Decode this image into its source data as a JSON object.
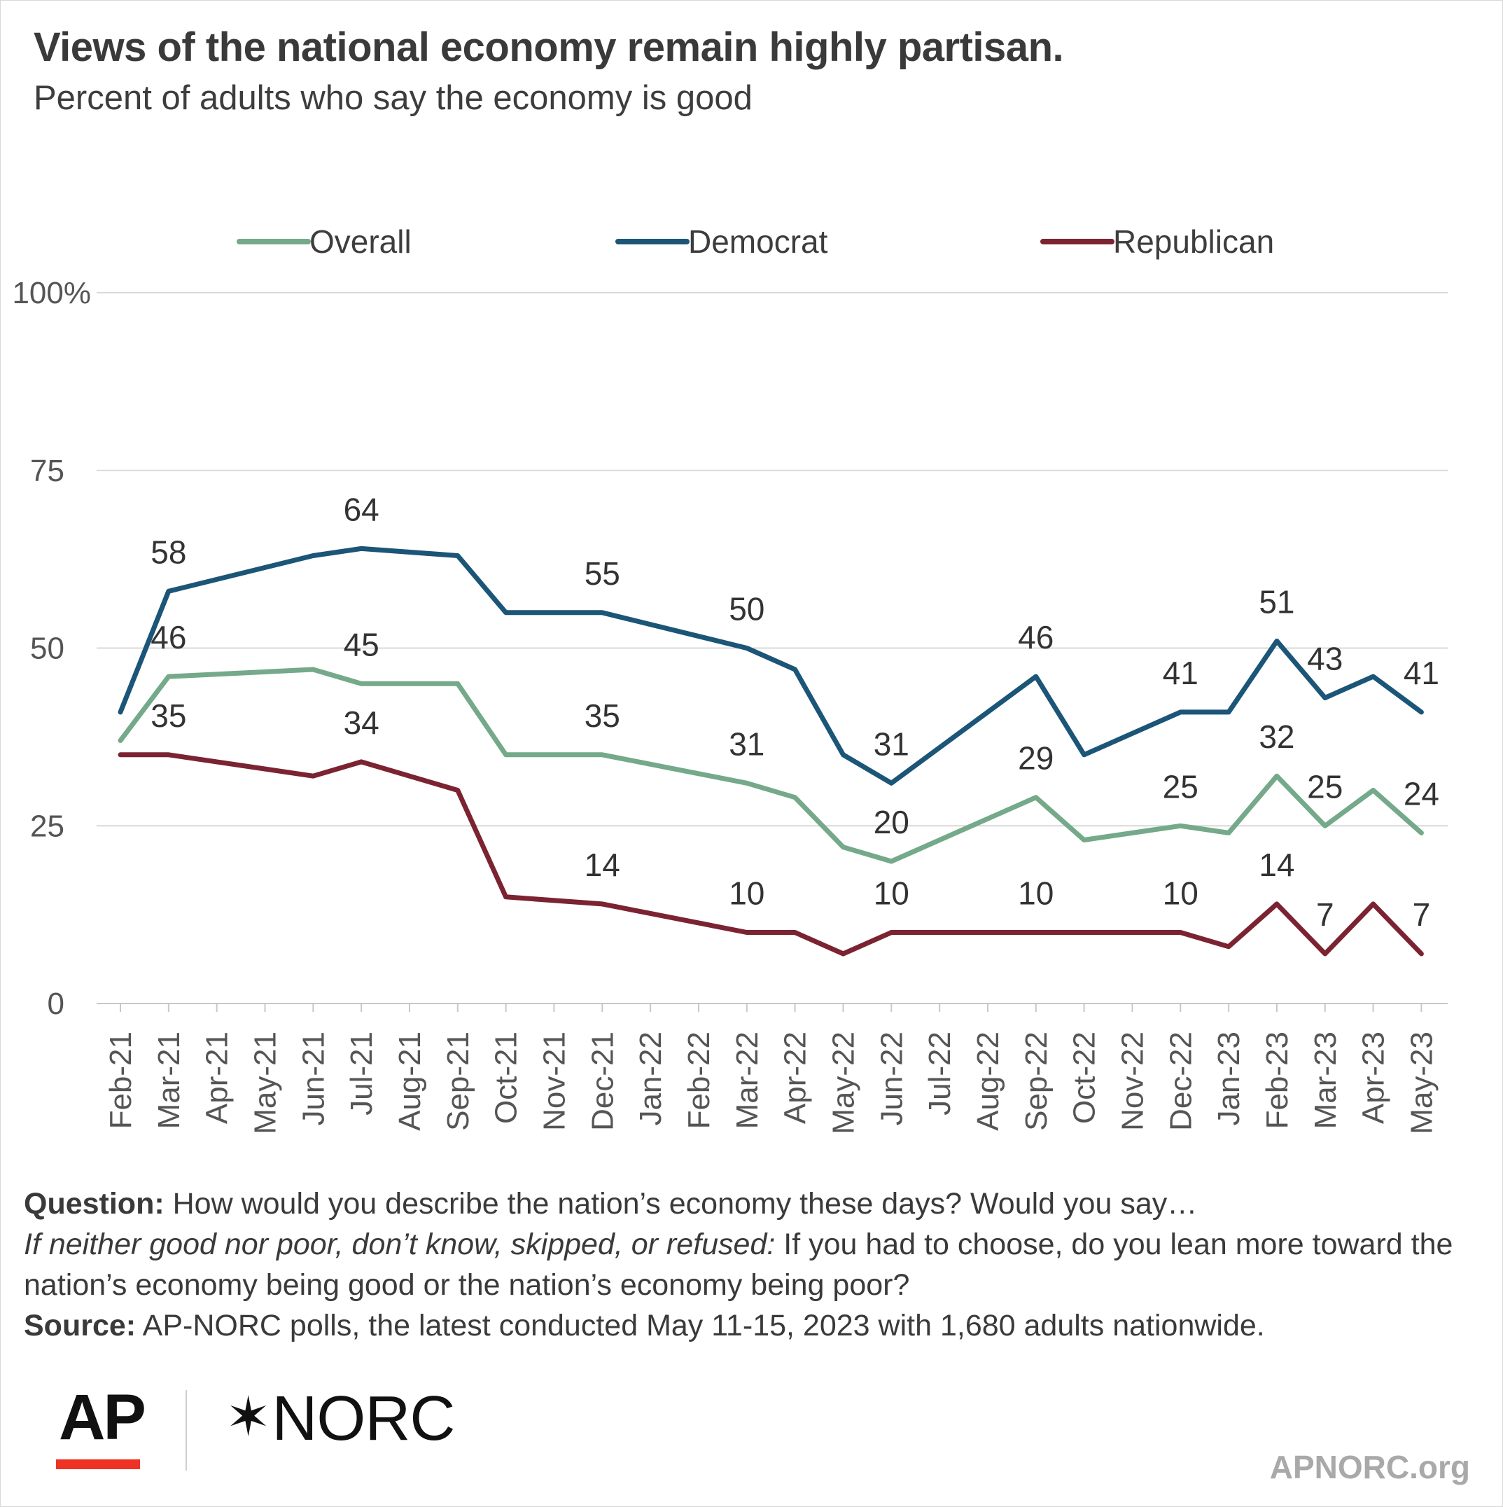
{
  "title": "Views of the national economy remain highly partisan.",
  "subtitle": "Percent of adults who say the economy is good",
  "notes": {
    "question_label": "Question:",
    "question_text": " How would you describe the nation’s economy these days? Would you say…",
    "followup_italic": "If neither good nor poor, don’t know, skipped, or refused:",
    "followup_text": " If you had to choose, do you lean more toward the nation’s economy being good or the nation’s economy being poor?",
    "source_label": "Source:",
    "source_text": " AP-NORC polls, the latest conducted May 11-15, 2023 with 1,680 adults nationwide."
  },
  "logos": {
    "ap": "AP",
    "norc": "NORC"
  },
  "website": "APNORC.org",
  "chart_data": {
    "type": "line",
    "categories": [
      "Feb-21",
      "Mar-21",
      "Apr-21",
      "May-21",
      "Jun-21",
      "Jul-21",
      "Aug-21",
      "Sep-21",
      "Oct-21",
      "Nov-21",
      "Dec-21",
      "Jan-22",
      "Feb-22",
      "Mar-22",
      "Apr-22",
      "May-22",
      "Jun-22",
      "Jul-22",
      "Aug-22",
      "Sep-22",
      "Oct-22",
      "Nov-22",
      "Dec-22",
      "Jan-23",
      "Feb-23",
      "Mar-23",
      "Apr-23",
      "May-23"
    ],
    "yticks": [
      {
        "value": 0,
        "label": "0"
      },
      {
        "value": 25,
        "label": "25"
      },
      {
        "value": 50,
        "label": "50"
      },
      {
        "value": 75,
        "label": "75"
      },
      {
        "value": 100,
        "label": "100%"
      }
    ],
    "ylim": [
      0,
      100
    ],
    "grid": true,
    "legend_position": "top",
    "series": [
      {
        "name": "Overall",
        "color": "#74a98a",
        "points": [
          [
            0,
            37
          ],
          [
            1,
            46
          ],
          [
            4,
            47
          ],
          [
            5,
            45
          ],
          [
            7,
            45
          ],
          [
            8,
            35
          ],
          [
            10,
            35
          ],
          [
            13,
            31
          ],
          [
            14,
            29
          ],
          [
            15,
            22
          ],
          [
            16,
            20
          ],
          [
            19,
            29
          ],
          [
            20,
            23
          ],
          [
            22,
            25
          ],
          [
            23,
            24
          ],
          [
            24,
            32
          ],
          [
            25,
            25
          ],
          [
            26,
            30
          ],
          [
            27,
            24
          ]
        ],
        "labels": [
          {
            "x": 1,
            "value": 46,
            "text": "46"
          },
          {
            "x": 5,
            "value": 45,
            "text": "45"
          },
          {
            "x": 10,
            "value": 35,
            "text": "35"
          },
          {
            "x": 13,
            "value": 31,
            "text": "31"
          },
          {
            "x": 16,
            "value": 20,
            "text": "20"
          },
          {
            "x": 19,
            "value": 29,
            "text": "29"
          },
          {
            "x": 22,
            "value": 25,
            "text": "25"
          },
          {
            "x": 24,
            "value": 32,
            "text": "32"
          },
          {
            "x": 25,
            "value": 25,
            "text": "25"
          },
          {
            "x": 27,
            "value": 24,
            "text": "24"
          }
        ]
      },
      {
        "name": "Democrat",
        "color": "#1b5577",
        "points": [
          [
            0,
            41
          ],
          [
            1,
            58
          ],
          [
            4,
            63
          ],
          [
            5,
            64
          ],
          [
            7,
            63
          ],
          [
            8,
            55
          ],
          [
            10,
            55
          ],
          [
            13,
            50
          ],
          [
            14,
            47
          ],
          [
            15,
            35
          ],
          [
            16,
            31
          ],
          [
            19,
            46
          ],
          [
            20,
            35
          ],
          [
            22,
            41
          ],
          [
            23,
            41
          ],
          [
            24,
            51
          ],
          [
            25,
            43
          ],
          [
            26,
            46
          ],
          [
            27,
            41
          ]
        ],
        "labels": [
          {
            "x": 1,
            "value": 58,
            "text": "58"
          },
          {
            "x": 5,
            "value": 64,
            "text": "64"
          },
          {
            "x": 10,
            "value": 55,
            "text": "55"
          },
          {
            "x": 13,
            "value": 50,
            "text": "50"
          },
          {
            "x": 16,
            "value": 31,
            "text": "31"
          },
          {
            "x": 19,
            "value": 46,
            "text": "46"
          },
          {
            "x": 22,
            "value": 41,
            "text": "41"
          },
          {
            "x": 24,
            "value": 51,
            "text": "51"
          },
          {
            "x": 25,
            "value": 43,
            "text": "43"
          },
          {
            "x": 27,
            "value": 41,
            "text": "41"
          }
        ]
      },
      {
        "name": "Republican",
        "color": "#7b2331",
        "points": [
          [
            0,
            35
          ],
          [
            1,
            35
          ],
          [
            4,
            32
          ],
          [
            5,
            34
          ],
          [
            7,
            30
          ],
          [
            8,
            15
          ],
          [
            10,
            14
          ],
          [
            13,
            10
          ],
          [
            14,
            10
          ],
          [
            15,
            7
          ],
          [
            16,
            10
          ],
          [
            19,
            10
          ],
          [
            20,
            10
          ],
          [
            22,
            10
          ],
          [
            23,
            8
          ],
          [
            24,
            14
          ],
          [
            25,
            7
          ],
          [
            26,
            14
          ],
          [
            27,
            7
          ]
        ],
        "labels": [
          {
            "x": 1,
            "value": 35,
            "text": "35"
          },
          {
            "x": 5,
            "value": 34,
            "text": "34"
          },
          {
            "x": 10,
            "value": 14,
            "text": "14"
          },
          {
            "x": 13,
            "value": 10,
            "text": "10"
          },
          {
            "x": 16,
            "value": 10,
            "text": "10"
          },
          {
            "x": 19,
            "value": 10,
            "text": "10"
          },
          {
            "x": 22,
            "value": 10,
            "text": "10"
          },
          {
            "x": 24,
            "value": 14,
            "text": "14"
          },
          {
            "x": 25,
            "value": 7,
            "text": "7"
          },
          {
            "x": 27,
            "value": 7,
            "text": "7"
          }
        ]
      }
    ]
  }
}
